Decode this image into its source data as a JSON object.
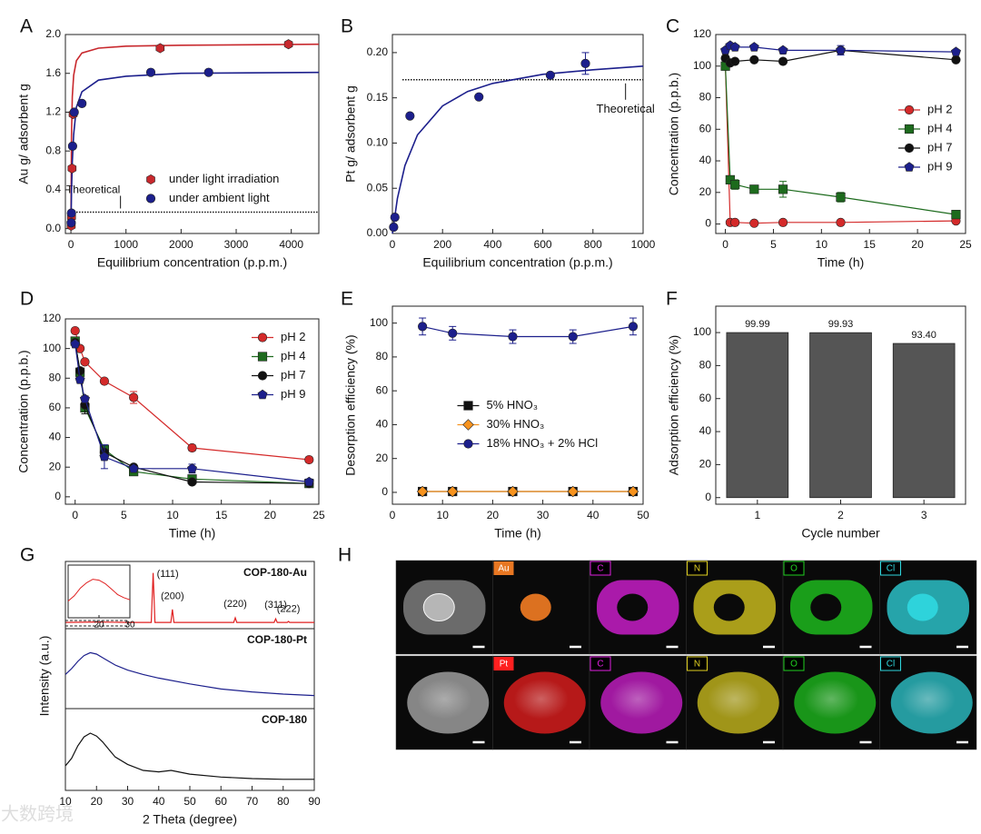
{
  "chart_data": [
    {
      "type": "scatter",
      "panel": "A",
      "xlabel": "Equilibrium concentration (p.p.m.)",
      "ylabel": "Au g/ adsorbent g",
      "xlim": [
        -100,
        4500
      ],
      "ylim": [
        -0.05,
        2.0
      ],
      "xticks": [
        0,
        1000,
        2000,
        3000,
        4000
      ],
      "yticks": [
        {
          "value": 0,
          "label": "0.0"
        },
        0.4,
        0.8,
        1.2,
        1.6,
        {
          "value": 2,
          "label": "2.0"
        }
      ],
      "legend": "lower right",
      "connect": false,
      "series": [
        {
          "name": "under light irradiation",
          "color": "#c8282d",
          "marker": "hexagon",
          "x": [
            5,
            10,
            20,
            40,
            1620,
            3950
          ],
          "values": [
            0.03,
            0.12,
            0.62,
            1.18,
            1.86,
            1.9
          ]
        },
        {
          "name": "under ambient light",
          "color": "#1c1f8c",
          "marker": "circle",
          "x": [
            5,
            10,
            30,
            60,
            200,
            1450,
            2500
          ],
          "values": [
            0.06,
            0.16,
            0.85,
            1.2,
            1.29,
            1.61,
            1.61
          ]
        }
      ],
      "fits": [
        {
          "color": "#c8282d",
          "x": [
            0,
            10,
            25,
            50,
            100,
            200,
            500,
            1000,
            2000,
            4500
          ],
          "values": [
            0,
            0.95,
            1.36,
            1.58,
            1.73,
            1.81,
            1.86,
            1.88,
            1.89,
            1.9
          ]
        },
        {
          "color": "#1c1f8c",
          "x": [
            0,
            10,
            25,
            50,
            100,
            200,
            500,
            1000,
            2000,
            4500
          ],
          "values": [
            0,
            0.37,
            0.69,
            0.97,
            1.25,
            1.41,
            1.53,
            1.57,
            1.6,
            1.61
          ]
        }
      ],
      "reference": {
        "value": 0.17,
        "label": "Theoretical",
        "label_x": 900,
        "from": 0,
        "to": 4500
      }
    },
    {
      "type": "scatter",
      "panel": "B",
      "xlabel": "Equilibrium concentration (p.p.m.)",
      "ylabel": "Pt g/ adsorbent g",
      "xlim": [
        0,
        1000
      ],
      "ylim": [
        0,
        0.22
      ],
      "xticks": [
        0,
        200,
        400,
        600,
        800,
        1000
      ],
      "yticks": [
        {
          "value": 0,
          "label": "0.00"
        },
        0.05,
        {
          "value": 0.1,
          "label": "0.10"
        },
        0.15,
        {
          "value": 0.2,
          "label": "0.20"
        }
      ],
      "connect": false,
      "series": [
        {
          "name": "Pt",
          "color": "#1c1f8c",
          "marker": "circle",
          "x": [
            5,
            10,
            70,
            345,
            630,
            770
          ],
          "values": [
            0.007,
            0.018,
            0.13,
            0.151,
            0.175,
            0.188
          ],
          "errors": [
            0,
            0,
            0,
            0,
            0,
            0.012
          ]
        }
      ],
      "fits": [
        {
          "color": "#1c1f8c",
          "x": [
            0,
            20,
            50,
            100,
            200,
            300,
            400,
            600,
            800,
            1000
          ],
          "values": [
            0,
            0.0387,
            0.075,
            0.109,
            0.141,
            0.157,
            0.166,
            0.176,
            0.181,
            0.185
          ]
        }
      ],
      "reference": {
        "value": 0.17,
        "label": "Theoretical",
        "label_x": 930,
        "from": 40,
        "to": 1000
      }
    },
    {
      "type": "line",
      "panel": "C",
      "xlabel": "Time (h)",
      "ylabel": "Concentration (p.p.b.)",
      "xlim": [
        -1,
        25
      ],
      "ylim": [
        -6,
        120
      ],
      "xticks": [
        0,
        5,
        10,
        15,
        20,
        25
      ],
      "yticks": [
        0,
        20,
        40,
        60,
        80,
        100,
        120
      ],
      "legend": "center right",
      "connect": true,
      "series": [
        {
          "name": "pH 2",
          "color": "#d42a2a",
          "marker": "circle",
          "x": [
            0,
            0.5,
            1,
            3,
            6,
            12,
            24
          ],
          "values": [
            100,
            1,
            1,
            0.5,
            1,
            1,
            2
          ]
        },
        {
          "name": "pH 4",
          "color": "#1d6b1d",
          "marker": "square",
          "x": [
            0,
            0.5,
            1,
            3,
            6,
            12,
            24
          ],
          "values": [
            100,
            28,
            25,
            22,
            22,
            17,
            6
          ],
          "errors": [
            0,
            2,
            3,
            1,
            5,
            3,
            2
          ]
        },
        {
          "name": "pH 7",
          "color": "#111111",
          "marker": "circle",
          "x": [
            0,
            0.5,
            1,
            3,
            6,
            12,
            24
          ],
          "values": [
            105,
            102,
            103,
            104,
            103,
            110,
            104
          ]
        },
        {
          "name": "pH 9",
          "color": "#1c1f8c",
          "marker": "pentagon",
          "x": [
            0,
            0.5,
            1,
            3,
            6,
            12,
            24
          ],
          "values": [
            110,
            113,
            112,
            112,
            110,
            110,
            109
          ],
          "errors": [
            0,
            0,
            0,
            0,
            0,
            3,
            0
          ]
        }
      ]
    },
    {
      "type": "line",
      "panel": "D",
      "xlabel": "Time (h)",
      "ylabel": "Concentration (p.p.b.)",
      "xlim": [
        -1,
        25
      ],
      "ylim": [
        -5,
        120
      ],
      "xticks": [
        0,
        5,
        10,
        15,
        20,
        25
      ],
      "yticks": [
        0,
        20,
        40,
        60,
        80,
        100,
        120
      ],
      "legend": "upper right",
      "connect": true,
      "series": [
        {
          "name": "pH 2",
          "color": "#d42a2a",
          "marker": "circle",
          "x": [
            0,
            0.5,
            1,
            3,
            6,
            12,
            24
          ],
          "values": [
            112,
            100,
            91,
            78,
            67,
            33,
            25
          ],
          "errors": [
            0,
            0,
            0,
            0,
            4,
            2,
            0
          ]
        },
        {
          "name": "pH 4",
          "color": "#1d6b1d",
          "marker": "square",
          "x": [
            0,
            0.5,
            1,
            3,
            6,
            12,
            24
          ],
          "values": [
            105,
            84,
            60,
            32,
            17,
            12,
            9
          ]
        },
        {
          "name": "pH 7",
          "color": "#111111",
          "marker": "circle",
          "x": [
            0,
            0.5,
            1,
            3,
            6,
            12,
            24
          ],
          "values": [
            104,
            85,
            62,
            30,
            20,
            10,
            9
          ],
          "errors": [
            0,
            0,
            6,
            5,
            0,
            0,
            0
          ]
        },
        {
          "name": "pH 9",
          "color": "#1c1f8c",
          "marker": "pentagon",
          "x": [
            0,
            0.5,
            1,
            3,
            6,
            12,
            24
          ],
          "values": [
            103,
            79,
            66,
            27,
            19,
            19,
            10
          ],
          "errors": [
            0,
            0,
            0,
            8,
            0,
            3,
            2
          ]
        }
      ]
    },
    {
      "type": "line",
      "panel": "E",
      "xlabel": "Time (h)",
      "ylabel": "Desorption efficiency (%)",
      "xlim": [
        0,
        50
      ],
      "ylim": [
        -7,
        110
      ],
      "xticks": [
        0,
        10,
        20,
        30,
        40,
        50
      ],
      "yticks": [
        0,
        20,
        40,
        60,
        80,
        100
      ],
      "legend": "center",
      "connect": true,
      "series": [
        {
          "name": "5% HNO₃",
          "color": "#111111",
          "marker": "square",
          "x": [
            6,
            12,
            24,
            36,
            48
          ],
          "values": [
            0.5,
            0.5,
            0.5,
            0.5,
            0.5
          ]
        },
        {
          "name": "30% HNO₃",
          "color": "#f7931e",
          "marker": "diamond",
          "x": [
            6,
            12,
            24,
            36,
            48
          ],
          "values": [
            0.5,
            0.5,
            0.5,
            0.5,
            0.5
          ]
        },
        {
          "name": "18% HNO₃ + 2% HCl",
          "color": "#1c1f8c",
          "marker": "circle",
          "x": [
            6,
            12,
            24,
            36,
            48
          ],
          "values": [
            98,
            94,
            92,
            92,
            98
          ],
          "errors": [
            5,
            4,
            4,
            4,
            5
          ]
        }
      ]
    },
    {
      "type": "bar",
      "panel": "F",
      "xlabel": "Cycle number",
      "ylabel": "Adsorption efficiency (%)",
      "categories": [
        "1",
        "2",
        "3"
      ],
      "values": [
        99.99,
        99.93,
        93.4
      ],
      "value_labels": [
        "99.99",
        "99.93",
        "93.40"
      ],
      "color": "#555555",
      "ylim": [
        -4,
        116
      ],
      "yticks": [
        0,
        20,
        40,
        60,
        80,
        100
      ]
    },
    {
      "type": "xrd",
      "panel": "G",
      "xlabel": "2 Theta (degree)",
      "ylabel": "Intensity (a.u.)",
      "xlim": [
        10,
        90
      ],
      "xticks": [
        10,
        20,
        30,
        40,
        50,
        60,
        70,
        80,
        90
      ],
      "series": [
        {
          "name": "COP-180-Au",
          "color": "#e02020",
          "ylim": [
            0,
            1.15
          ],
          "x": [
            10,
            20,
            30,
            37.6,
            38.2,
            38.8,
            43.9,
            44.4,
            44.9,
            64.1,
            64.6,
            65.1,
            77.1,
            77.6,
            78.1,
            81.3,
            81.7,
            82.1,
            90
          ],
          "values": [
            0.05,
            0.06,
            0.05,
            0.05,
            1,
            0.05,
            0.05,
            0.3,
            0.05,
            0.05,
            0.14,
            0.05,
            0.05,
            0.12,
            0.05,
            0.05,
            0.07,
            0.05,
            0.05
          ],
          "peaks": [
            {
              "x": 38.2,
              "y": 0.97,
              "label": "(111)"
            },
            {
              "x": 44.4,
              "y": 0.55,
              "label": "(200)"
            },
            {
              "x": 64.6,
              "y": 0.4,
              "label": "(220)"
            },
            {
              "x": 77.6,
              "y": 0.38,
              "label": "(311)"
            },
            {
              "x": 81.7,
              "y": 0.3,
              "label": "(222)"
            }
          ],
          "inset": {
            "xlim": [
              10,
              30
            ],
            "xticks": [
              20,
              30
            ],
            "x": [
              10,
              12,
              14,
              16,
              18,
              20,
              22,
              24,
              26,
              28,
              30
            ],
            "values": [
              0.3,
              0.42,
              0.6,
              0.72,
              0.8,
              0.78,
              0.7,
              0.58,
              0.45,
              0.38,
              0.33
            ]
          }
        },
        {
          "name": "COP-180-Pt",
          "color": "#1c1f8c",
          "ylim": [
            0,
            1
          ],
          "x": [
            10,
            12,
            14,
            16,
            18,
            20,
            22,
            24,
            26,
            30,
            35,
            40,
            50,
            60,
            70,
            80,
            90
          ],
          "values": [
            0.42,
            0.5,
            0.6,
            0.68,
            0.72,
            0.7,
            0.65,
            0.6,
            0.55,
            0.48,
            0.42,
            0.37,
            0.29,
            0.22,
            0.18,
            0.15,
            0.13
          ]
        },
        {
          "name": "COP-180",
          "color": "#111111",
          "ylim": [
            0,
            1
          ],
          "x": [
            10,
            12,
            14,
            16,
            18,
            20,
            22,
            24,
            26,
            30,
            35,
            40,
            44,
            50,
            60,
            70,
            80,
            90
          ],
          "values": [
            0.28,
            0.38,
            0.55,
            0.67,
            0.72,
            0.68,
            0.6,
            0.5,
            0.4,
            0.3,
            0.22,
            0.2,
            0.22,
            0.17,
            0.13,
            0.11,
            0.1,
            0.1
          ]
        }
      ]
    }
  ],
  "image_panel": {
    "panel": "H",
    "maps": [
      [
        {
          "label": "Au",
          "color": "#e87722"
        },
        {
          "label": "C",
          "color": "#e020e0"
        },
        {
          "label": "N",
          "color": "#e0d020"
        },
        {
          "label": "O",
          "color": "#20d020"
        },
        {
          "label": "Cl",
          "color": "#30d8e0"
        }
      ],
      [
        {
          "label": "Pt",
          "color": "#ff2020"
        },
        {
          "label": "C",
          "color": "#e020e0"
        },
        {
          "label": "N",
          "color": "#e0d020"
        },
        {
          "label": "O",
          "color": "#20d020"
        },
        {
          "label": "Cl",
          "color": "#30d8e0"
        }
      ]
    ]
  },
  "watermark": "大数跨境"
}
